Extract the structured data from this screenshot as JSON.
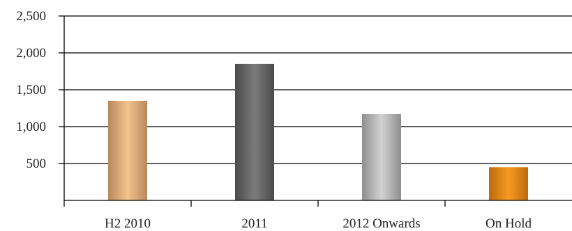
{
  "chart_data": {
    "type": "bar",
    "title": "",
    "xlabel": "",
    "ylabel": "",
    "categories": [
      "H2 2010",
      "2011",
      "2012 Onwards",
      "On Hold"
    ],
    "values": [
      1350,
      1850,
      1170,
      450
    ],
    "ylim": [
      0,
      2500
    ],
    "yticks": [
      500,
      1000,
      1500,
      2000,
      2500
    ],
    "ytick_labels": [
      "500",
      "1,000",
      "1,500",
      "2,000",
      "2,500"
    ],
    "grid": "horizontal",
    "legend": "none",
    "bar_colors": [
      [
        "#b8895a",
        "#f3c48e",
        "#b8895a"
      ],
      [
        "#4b4b4b",
        "#7b7b7b",
        "#4b4b4b"
      ],
      [
        "#8f8f8f",
        "#d2d2d2",
        "#8f8f8f"
      ],
      [
        "#c06a0c",
        "#f49a22",
        "#c06a0c"
      ]
    ]
  }
}
